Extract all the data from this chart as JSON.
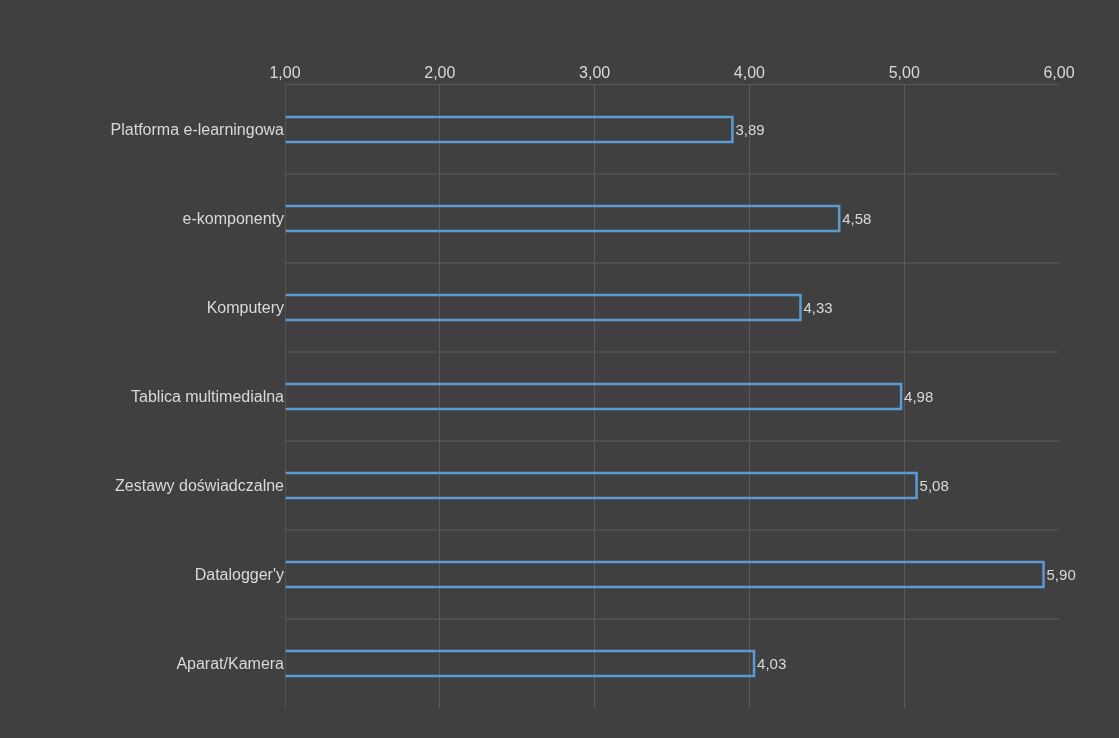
{
  "chart_data": {
    "type": "bar",
    "orientation": "horizontal",
    "categories": [
      "Platforma e-learningowa",
      "e-komponenty",
      "Komputery",
      "Tablica multimedialna",
      "Zestawy doświadczalne",
      "Datalogger'y",
      "Aparat/Kamera"
    ],
    "values": [
      3.89,
      4.58,
      4.33,
      4.98,
      5.08,
      5.9,
      4.03
    ],
    "value_labels": [
      "3,89",
      "4,58",
      "4,33",
      "4,98",
      "5,08",
      "5,90",
      "4,03"
    ],
    "color": "#5b9bd5",
    "xlim": [
      1,
      6
    ],
    "xticks": [
      {
        "value": 1,
        "label": "1,00"
      },
      {
        "value": 2,
        "label": "2,00"
      },
      {
        "value": 3,
        "label": "3,00"
      },
      {
        "value": 4,
        "label": "4,00"
      },
      {
        "value": 5,
        "label": "5,00"
      },
      {
        "value": 6,
        "label": "6,00"
      }
    ],
    "grid": true,
    "legend": false
  }
}
